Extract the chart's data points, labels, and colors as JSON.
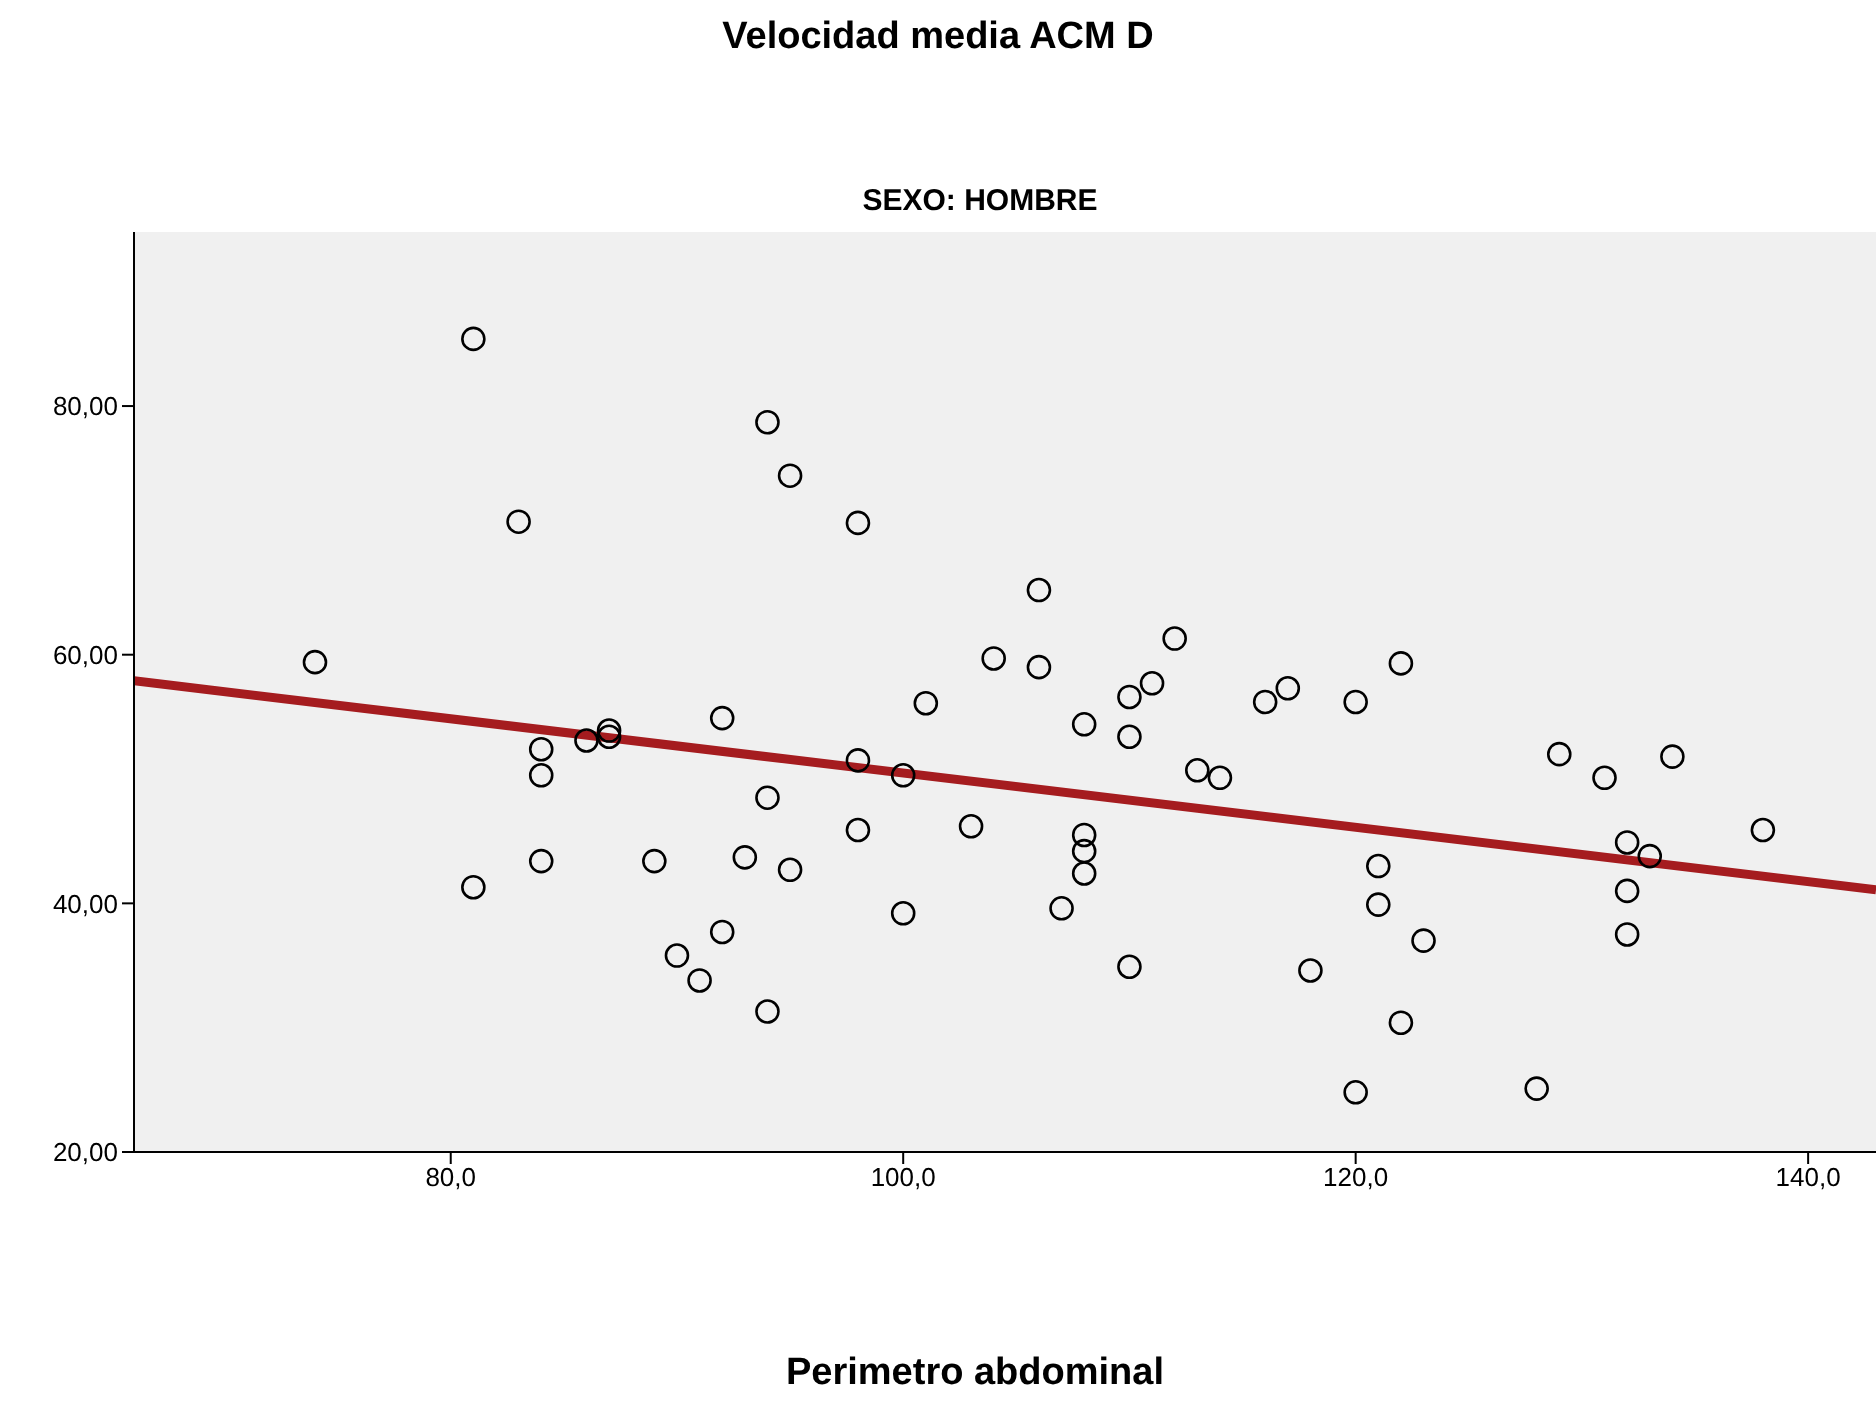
{
  "chart_data": {
    "type": "scatter",
    "title": "Velocidad media ACM D",
    "subtitle": "SEXO: HOMBRE",
    "xlabel": "Perimetro abdominal",
    "xlim": [
      66,
      143
    ],
    "ylim": [
      20,
      94
    ],
    "xticks": [
      {
        "value": 80,
        "label": "80,0"
      },
      {
        "value": 100,
        "label": "100,0"
      },
      {
        "value": 120,
        "label": "120,0"
      },
      {
        "value": 140,
        "label": "140,0"
      }
    ],
    "yticks": [
      {
        "value": 20,
        "label": "20,00"
      },
      {
        "value": 40,
        "label": "40,00"
      },
      {
        "value": 60,
        "label": "60,00"
      },
      {
        "value": 80,
        "label": "80,00"
      }
    ],
    "grid": false,
    "series": [
      {
        "marker": "circle",
        "color": "#000000",
        "x": [
          74,
          81,
          83,
          81,
          84,
          84,
          84,
          86,
          87,
          87,
          89,
          90,
          91,
          92,
          92,
          93,
          94,
          94,
          94,
          95,
          95,
          98,
          98,
          98,
          100,
          100,
          101,
          103,
          104,
          106,
          106,
          108,
          108,
          108,
          108,
          107,
          110,
          110,
          110,
          111,
          112,
          113,
          114,
          116,
          117,
          118,
          120,
          120,
          122,
          121,
          121,
          122,
          123,
          128,
          129,
          131,
          132,
          132,
          132,
          133,
          134,
          138
        ],
        "values": [
          59.4,
          85.4,
          70.7,
          41.3,
          52.4,
          50.3,
          43.4,
          53.1,
          53.9,
          53.4,
          43.4,
          35.8,
          33.8,
          54.9,
          37.7,
          43.7,
          78.7,
          48.5,
          31.3,
          74.4,
          42.7,
          70.6,
          51.5,
          45.9,
          50.3,
          39.2,
          56.1,
          46.2,
          59.7,
          65.2,
          59.0,
          54.4,
          45.5,
          44.2,
          42.4,
          39.6,
          56.6,
          53.4,
          34.9,
          57.7,
          61.3,
          50.7,
          50.1,
          56.2,
          57.3,
          34.6,
          56.2,
          24.8,
          59.3,
          43.0,
          39.9,
          30.4,
          37.0,
          25.1,
          52.0,
          50.1,
          44.9,
          41.0,
          37.5,
          43.8,
          51.8,
          45.9
        ]
      },
      {
        "type": "line",
        "color": "#a51c1f",
        "line_style": "solid",
        "x": [
          66,
          143
        ],
        "values": [
          57.9,
          41.1
        ]
      }
    ]
  }
}
